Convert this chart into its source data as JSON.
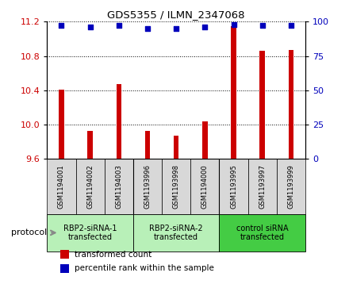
{
  "title": "GDS5355 / ILMN_2347068",
  "samples": [
    "GSM1194001",
    "GSM1194002",
    "GSM1194003",
    "GSM1193996",
    "GSM1193998",
    "GSM1194000",
    "GSM1193995",
    "GSM1193997",
    "GSM1193999"
  ],
  "red_values": [
    10.41,
    9.93,
    10.47,
    9.93,
    9.87,
    10.04,
    11.15,
    10.86,
    10.87
  ],
  "blue_values": [
    97,
    96,
    97,
    95,
    95,
    96,
    98,
    97,
    97
  ],
  "ylim_left": [
    9.6,
    11.2
  ],
  "ylim_right": [
    0,
    100
  ],
  "yticks_left": [
    9.6,
    10.0,
    10.4,
    10.8,
    11.2
  ],
  "yticks_right": [
    0,
    25,
    50,
    75,
    100
  ],
  "groups": [
    {
      "label": "RBP2-siRNA-1\ntransfected",
      "indices": [
        0,
        1,
        2
      ],
      "color": "#b8f0b8"
    },
    {
      "label": "RBP2-siRNA-2\ntransfected",
      "indices": [
        3,
        4,
        5
      ],
      "color": "#b8f0b8"
    },
    {
      "label": "control siRNA\ntransfected",
      "indices": [
        6,
        7,
        8
      ],
      "color": "#44cc44"
    }
  ],
  "bar_color": "#cc0000",
  "dot_color": "#0000bb",
  "bar_width": 0.18,
  "protocol_label": "protocol",
  "legend_items": [
    {
      "color": "#cc0000",
      "label": "transformed count"
    },
    {
      "color": "#0000bb",
      "label": "percentile rank within the sample"
    }
  ],
  "bg_color": "#ffffff",
  "panel_color": "#d8d8d8",
  "separator_color": "#333333"
}
